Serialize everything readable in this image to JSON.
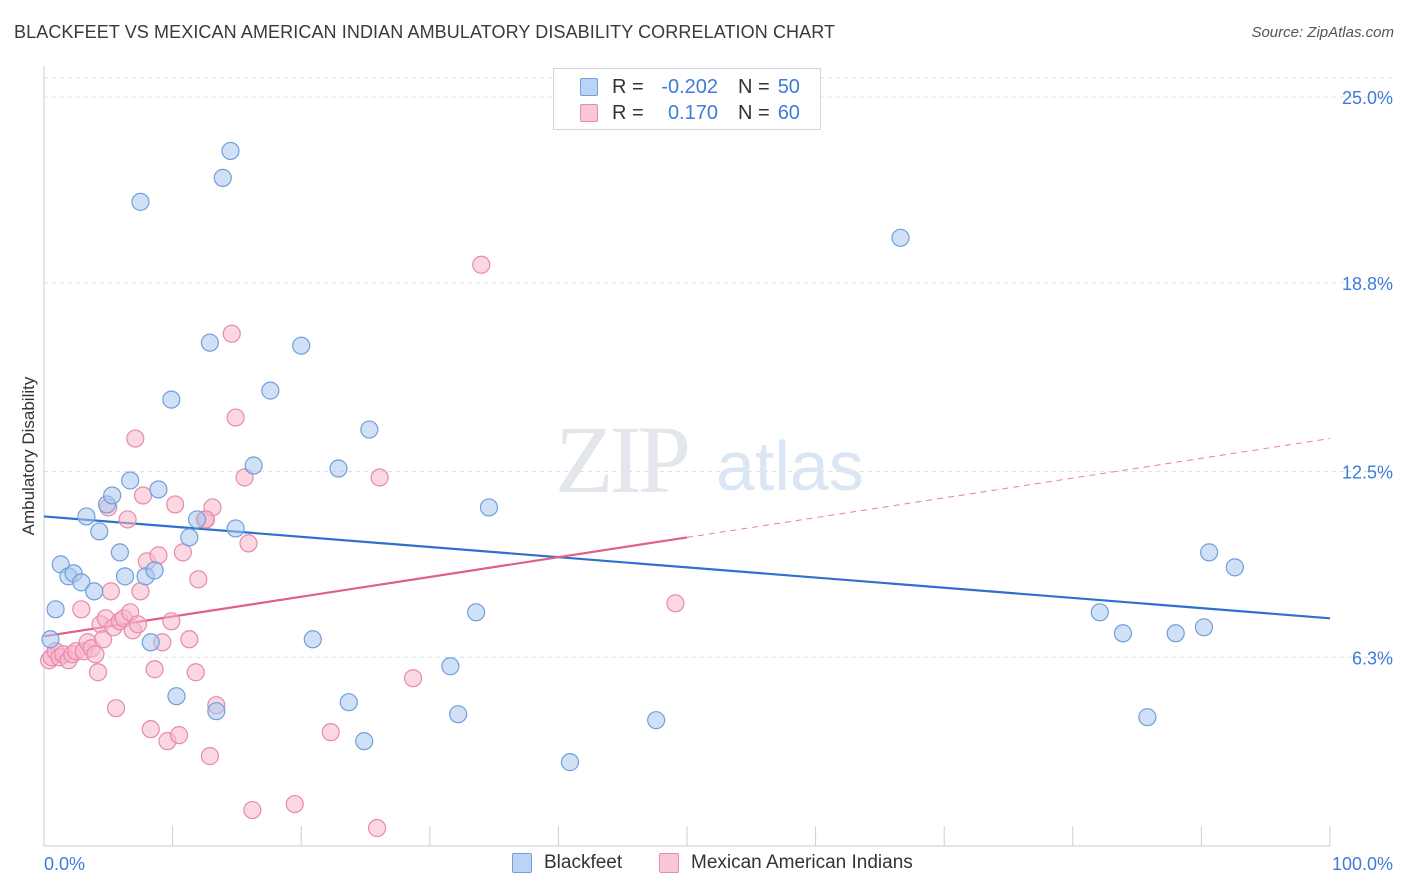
{
  "header": {
    "title": "BLACKFEET VS MEXICAN AMERICAN INDIAN AMBULATORY DISABILITY CORRELATION CHART",
    "source": "Source: ZipAtlas.com"
  },
  "legend": {
    "r_label": "R =",
    "n_label": "N =",
    "rows": [
      {
        "r": "-0.202",
        "n": "50"
      },
      {
        "r": "0.170",
        "n": "60"
      }
    ]
  },
  "colors": {
    "blue_fill": "#a9c8f0",
    "blue_stroke": "#6f9fdc",
    "blue_line": "#2f6fce",
    "pink_fill": "#f7b6cb",
    "pink_stroke": "#e88aaa",
    "pink_line": "#e0608c",
    "tick_label": "#3f7bd9",
    "grid": "#dde1e6"
  },
  "watermark": {
    "zip": "ZIP",
    "atlas": "atlas"
  },
  "chart_data": {
    "type": "scatter",
    "title": "BLACKFEET VS MEXICAN AMERICAN INDIAN AMBULATORY DISABILITY CORRELATION CHART",
    "xlabel": "",
    "ylabel": "Ambulatory Disability",
    "xlim": [
      0,
      100
    ],
    "ylim": [
      0,
      25.9
    ],
    "x_tick_labels": [
      "0.0%",
      "100.0%"
    ],
    "y_ticks": [
      6.3,
      12.5,
      18.8,
      25.0
    ],
    "y_tick_labels": [
      "6.3%",
      "12.5%",
      "18.8%",
      "25.0%"
    ],
    "grid": true,
    "legend_position": "bottom",
    "series": [
      {
        "name": "Blackfeet",
        "r": -0.202,
        "n": 50,
        "trend": {
          "x": [
            0,
            100
          ],
          "y": [
            11.0,
            7.6
          ]
        },
        "points": [
          [
            0.5,
            6.9
          ],
          [
            0.9,
            7.9
          ],
          [
            1.3,
            9.4
          ],
          [
            1.9,
            9.0
          ],
          [
            2.3,
            9.1
          ],
          [
            2.9,
            8.8
          ],
          [
            3.3,
            11.0
          ],
          [
            3.9,
            8.5
          ],
          [
            4.3,
            10.5
          ],
          [
            4.9,
            11.4
          ],
          [
            5.3,
            11.7
          ],
          [
            5.9,
            9.8
          ],
          [
            6.3,
            9.0
          ],
          [
            6.7,
            12.2
          ],
          [
            7.5,
            21.5
          ],
          [
            7.9,
            9.0
          ],
          [
            8.3,
            6.8
          ],
          [
            8.9,
            11.9
          ],
          [
            8.6,
            9.2
          ],
          [
            9.9,
            14.9
          ],
          [
            10.3,
            5.0
          ],
          [
            11.3,
            10.3
          ],
          [
            11.9,
            10.9
          ],
          [
            12.9,
            16.8
          ],
          [
            13.4,
            4.5
          ],
          [
            13.9,
            22.3
          ],
          [
            14.5,
            23.2
          ],
          [
            14.9,
            10.6
          ],
          [
            16.3,
            12.7
          ],
          [
            17.6,
            15.2
          ],
          [
            20.0,
            16.7
          ],
          [
            20.9,
            6.9
          ],
          [
            22.9,
            12.6
          ],
          [
            23.7,
            4.8
          ],
          [
            24.9,
            3.5
          ],
          [
            25.3,
            13.9
          ],
          [
            31.6,
            6.0
          ],
          [
            32.2,
            4.4
          ],
          [
            33.6,
            7.8
          ],
          [
            34.6,
            11.3
          ],
          [
            40.9,
            2.8
          ],
          [
            47.6,
            4.2
          ],
          [
            66.6,
            20.3
          ],
          [
            82.1,
            7.8
          ],
          [
            83.9,
            7.1
          ],
          [
            85.8,
            4.3
          ],
          [
            88.0,
            7.1
          ],
          [
            90.2,
            7.3
          ],
          [
            90.6,
            9.8
          ],
          [
            92.6,
            9.3
          ]
        ]
      },
      {
        "name": "Mexican American Indians",
        "r": 0.17,
        "n": 60,
        "trend": {
          "x": [
            0,
            50,
            100
          ],
          "y": [
            7.0,
            10.3,
            13.6
          ],
          "solid_until": 50
        },
        "points": [
          [
            0.4,
            6.2
          ],
          [
            0.6,
            6.3
          ],
          [
            0.9,
            6.5
          ],
          [
            1.2,
            6.3
          ],
          [
            1.5,
            6.4
          ],
          [
            1.9,
            6.2
          ],
          [
            2.2,
            6.4
          ],
          [
            2.5,
            6.5
          ],
          [
            2.9,
            7.9
          ],
          [
            3.1,
            6.5
          ],
          [
            3.4,
            6.8
          ],
          [
            3.7,
            6.6
          ],
          [
            4.0,
            6.4
          ],
          [
            4.2,
            5.8
          ],
          [
            4.4,
            7.4
          ],
          [
            4.6,
            6.9
          ],
          [
            4.8,
            7.6
          ],
          [
            5.0,
            11.3
          ],
          [
            5.2,
            8.5
          ],
          [
            5.4,
            7.3
          ],
          [
            5.6,
            4.6
          ],
          [
            5.9,
            7.5
          ],
          [
            6.2,
            7.6
          ],
          [
            6.5,
            10.9
          ],
          [
            6.7,
            7.8
          ],
          [
            6.9,
            7.2
          ],
          [
            7.1,
            13.6
          ],
          [
            7.3,
            7.4
          ],
          [
            7.5,
            8.5
          ],
          [
            7.7,
            11.7
          ],
          [
            8.0,
            9.5
          ],
          [
            8.3,
            3.9
          ],
          [
            8.6,
            5.9
          ],
          [
            8.9,
            9.7
          ],
          [
            9.2,
            6.8
          ],
          [
            9.6,
            3.5
          ],
          [
            9.9,
            7.5
          ],
          [
            10.2,
            11.4
          ],
          [
            10.5,
            3.7
          ],
          [
            10.8,
            9.8
          ],
          [
            11.3,
            6.9
          ],
          [
            11.8,
            5.8
          ],
          [
            12.0,
            8.9
          ],
          [
            12.5,
            10.9
          ],
          [
            12.9,
            3.0
          ],
          [
            13.1,
            11.3
          ],
          [
            13.4,
            4.7
          ],
          [
            14.6,
            17.1
          ],
          [
            14.9,
            14.3
          ],
          [
            15.6,
            12.3
          ],
          [
            15.9,
            10.1
          ],
          [
            16.2,
            1.2
          ],
          [
            19.5,
            1.4
          ],
          [
            22.3,
            3.8
          ],
          [
            25.9,
            0.6
          ],
          [
            26.1,
            12.3
          ],
          [
            28.7,
            5.6
          ],
          [
            34.0,
            19.4
          ],
          [
            49.1,
            8.1
          ],
          [
            12.6,
            10.9
          ]
        ]
      }
    ]
  }
}
